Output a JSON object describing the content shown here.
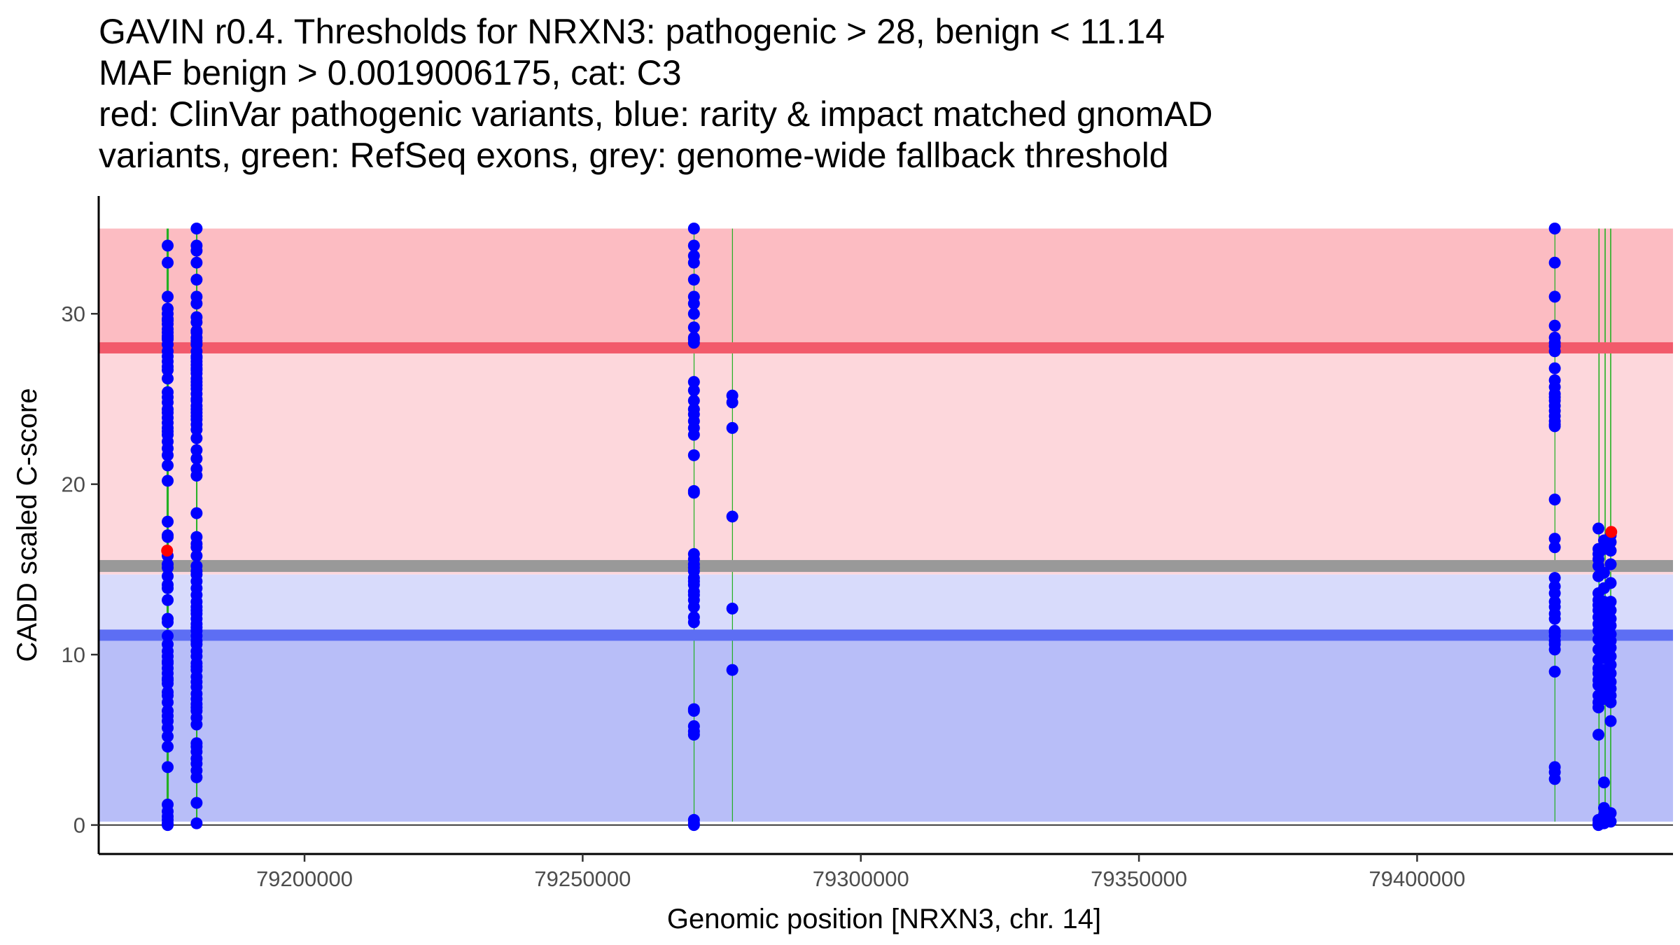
{
  "chart_data": {
    "type": "scatter",
    "title_lines": [
      "GAVIN r0.4. Thresholds for NRXN3: pathogenic > 28, benign < 11.14",
      "MAF benign > 0.0019006175, cat: C3",
      "red: ClinVar pathogenic variants, blue: rarity & impact matched gnomAD",
      "variants, green: RefSeq exons, grey: genome-wide fallback threshold"
    ],
    "xlabel": "Genomic position [NRXN3, chr. 14]",
    "ylabel": "CADD scaled C-score",
    "xlim": [
      79163000,
      79446000
    ],
    "ylim": [
      -1.7,
      36.5
    ],
    "x_ticks": [
      79200000,
      79250000,
      79300000,
      79350000,
      79400000
    ],
    "x_tick_labels": [
      "79200000",
      "79250000",
      "79300000",
      "79350000",
      "79400000"
    ],
    "y_ticks": [
      0,
      10,
      20,
      30
    ],
    "y_tick_labels": [
      "0",
      "10",
      "20",
      "30"
    ],
    "grid": false,
    "colors": {
      "pathogenic_region": "#fcbcc2",
      "vus_region": "#fdd7dc",
      "light_benign_region": "#d8dbfb",
      "benign_region": "#b8bef8",
      "pathogenic_line": "#f25a6b",
      "fallback_line": "#999999",
      "benign_line": "#5d6ef3",
      "exon": "#22b022",
      "gnomad_point": "#0000ff",
      "clinvar_point": "#ff0000"
    },
    "thresholds": {
      "pathogenic": 28,
      "benign": 11.14,
      "fallback": 15.2,
      "region_top": 35,
      "region_bottom": 0.2,
      "light_benign_top": 14.7
    },
    "exons": [
      {
        "start": 79175200,
        "end": 79175600
      },
      {
        "start": 79180500,
        "end": 79180750
      },
      {
        "start": 79269950,
        "end": 79270100
      },
      {
        "start": 79276850,
        "end": 79276950
      },
      {
        "start": 79424700,
        "end": 79424850
      },
      {
        "start": 79432600,
        "end": 79432800
      },
      {
        "start": 79433700,
        "end": 79433900
      },
      {
        "start": 79434700,
        "end": 79434900
      }
    ],
    "series": [
      {
        "name": "gnomAD",
        "x": [
          79175400,
          79175400,
          79175400,
          79175400,
          79175400,
          79175400,
          79175400,
          79175400,
          79175400,
          79175400,
          79175400,
          79175400,
          79175400,
          79175400,
          79175400,
          79175400,
          79175400,
          79175400,
          79175400,
          79175400,
          79175400,
          79175400,
          79175400,
          79175400,
          79175400,
          79175400,
          79175400,
          79175400,
          79175400,
          79175400,
          79175400,
          79175400,
          79175400,
          79175400,
          79175400,
          79175400,
          79175400,
          79175400,
          79175400,
          79175400,
          79175400,
          79175400,
          79175400,
          79175400,
          79175400,
          79175400,
          79175400,
          79175400,
          79175400,
          79175400,
          79175400,
          79175400,
          79175400,
          79175400,
          79175400,
          79175400,
          79175400,
          79175400,
          79175400,
          79175400,
          79175400,
          79175400,
          79175400,
          79175400,
          79175400,
          79175400,
          79175400,
          79175400,
          79175400,
          79175400,
          79175400,
          79175400,
          79175400,
          79175400,
          79180600,
          79180600,
          79180600,
          79180600,
          79180600,
          79180600,
          79180600,
          79180600,
          79180600,
          79180600,
          79180600,
          79180600,
          79180600,
          79180600,
          79180600,
          79180600,
          79180600,
          79180600,
          79180600,
          79180600,
          79180600,
          79180600,
          79180600,
          79180600,
          79180600,
          79180600,
          79180600,
          79180600,
          79180600,
          79180600,
          79180600,
          79180600,
          79180600,
          79180600,
          79180600,
          79180600,
          79180600,
          79180600,
          79180600,
          79180600,
          79180600,
          79180600,
          79180600,
          79180600,
          79180600,
          79180600,
          79180600,
          79180600,
          79180600,
          79180600,
          79180600,
          79180600,
          79180600,
          79180600,
          79180600,
          79180600,
          79180600,
          79180600,
          79180600,
          79180600,
          79180600,
          79180600,
          79180600,
          79180600,
          79180600,
          79180600,
          79180600,
          79180600,
          79180600,
          79180600,
          79180600,
          79180600,
          79180600,
          79180600,
          79180600,
          79180600,
          79180600,
          79180600,
          79180600,
          79180600,
          79180600,
          79180600,
          79180600,
          79180600,
          79180600,
          79180600,
          79180600,
          79270000,
          79270000,
          79270000,
          79270000,
          79270000,
          79270000,
          79270000,
          79270000,
          79270000,
          79270000,
          79270000,
          79270000,
          79270000,
          79270000,
          79270000,
          79270000,
          79270000,
          79270000,
          79270000,
          79270000,
          79270000,
          79270000,
          79270000,
          79270000,
          79270000,
          79270000,
          79270000,
          79270000,
          79270000,
          79270000,
          79270000,
          79270000,
          79270000,
          79270000,
          79270000,
          79270000,
          79270000,
          79270000,
          79270000,
          79270000,
          79270000,
          79270000,
          79270000,
          79270000,
          79270000,
          79276900,
          79276900,
          79276900,
          79276900,
          79276900,
          79276900,
          79424750,
          79424750,
          79424750,
          79424750,
          79424750,
          79424750,
          79424750,
          79424750,
          79424750,
          79424750,
          79424750,
          79424750,
          79424750,
          79424750,
          79424750,
          79424750,
          79424750,
          79424750,
          79424750,
          79424750,
          79424750,
          79424750,
          79424750,
          79424750,
          79424750,
          79424750,
          79424750,
          79424750,
          79424750,
          79424750,
          79424750,
          79424750,
          79424750,
          79424750,
          79424750,
          79424750,
          79424750,
          79424750,
          79424750,
          79424750,
          79432600,
          79432600,
          79432600,
          79432600,
          79432600,
          79432600,
          79432600,
          79432600,
          79432600,
          79432600,
          79432600,
          79432600,
          79432600,
          79432600,
          79432600,
          79432600,
          79432600,
          79432600,
          79432600,
          79432600,
          79432600,
          79432600,
          79432600,
          79432600,
          79432600,
          79432600,
          79432600,
          79433600,
          79433600,
          79433600,
          79433600,
          79433600,
          79433600,
          79433600,
          79433600,
          79433600,
          79433600,
          79433600,
          79433600,
          79433600,
          79433600,
          79433600,
          79433600,
          79433600,
          79433600,
          79433600,
          79433600,
          79433600,
          79433600,
          79433600,
          79433600,
          79434800,
          79434800,
          79434800,
          79434800,
          79434800,
          79434800,
          79434800,
          79434800,
          79434800,
          79434800,
          79434800,
          79434800,
          79434800,
          79434800,
          79434800,
          79434800,
          79434800,
          79434800,
          79434800,
          79434800,
          79434800,
          79434800
        ],
        "y": [
          34,
          33,
          31,
          30,
          29.7,
          29.4,
          29.1,
          28.9,
          28.7,
          28.5,
          28.2,
          27.8,
          27.2,
          26.7,
          26.2,
          25.4,
          25.1,
          24.8,
          24.4,
          23.9,
          23.6,
          23.3,
          22.9,
          22.5,
          22.1,
          21.7,
          21.1,
          20.2,
          17,
          16.9,
          15.8,
          15.3,
          14.6,
          13.9,
          13.2,
          12.1,
          11.1,
          10.6,
          10.2,
          9.9,
          9.6,
          9.2,
          8.9,
          8.5,
          8.3,
          7.8,
          7.2,
          6.7,
          6.1,
          5.7,
          5.2,
          4.6,
          3.4,
          1.2,
          0.8,
          0.5,
          0.3,
          0.1,
          0,
          30.3,
          29.6,
          28.6,
          27.5,
          26.9,
          24.2,
          23.1,
          17.8,
          15.1,
          14.1,
          11.9,
          9.5,
          8.6,
          7.6,
          6.4,
          35,
          34,
          33,
          32,
          31,
          29.5,
          29,
          28.6,
          28.2,
          27.8,
          27.5,
          27.2,
          26.8,
          26.5,
          26.2,
          25.8,
          25.3,
          24.9,
          24.6,
          24.2,
          23.8,
          23.5,
          23.2,
          22,
          21.5,
          20.9,
          20.5,
          18.3,
          16.9,
          16.3,
          15.8,
          15.2,
          14.7,
          14.3,
          13.9,
          13.5,
          13.1,
          12.8,
          12.4,
          12.1,
          11.8,
          11.4,
          11.1,
          10.6,
          10.2,
          9.9,
          9.5,
          9.1,
          8.7,
          8.4,
          7.7,
          7.1,
          6.7,
          6.3,
          4.8,
          4.3,
          3.6,
          3.2,
          2.8,
          1.3,
          0.1,
          29.8,
          28.9,
          28.4,
          27,
          26,
          25,
          24,
          22.7,
          16.5,
          14.9,
          12.6,
          11.6,
          10.8,
          9.3,
          8.1,
          7.4,
          6.9,
          5.9,
          4.6,
          3.9,
          33.7,
          30.6,
          27.4,
          26.7,
          25.6,
          24.4,
          35,
          34,
          33,
          32,
          31,
          30,
          29.2,
          28.6,
          28.3,
          28.5,
          26,
          25.5,
          24.9,
          24.1,
          23.7,
          23.3,
          22.9,
          21.7,
          19.6,
          19.5,
          15.9,
          15.6,
          15.3,
          14.9,
          14.5,
          14.3,
          14.1,
          13.5,
          13.2,
          12.8,
          12.2,
          11.9,
          6.8,
          6.7,
          5.8,
          5.5,
          5.3,
          0.3,
          0.1,
          0,
          33.4,
          30.6,
          24.4,
          15.1,
          13.7,
          25.2,
          24.8,
          23.3,
          18.1,
          12.7,
          9.1,
          35,
          33,
          31,
          29.3,
          28.3,
          28.1,
          27.8,
          26.8,
          26.1,
          25.7,
          25.3,
          24.9,
          24.6,
          24.3,
          24,
          23.7,
          23.5,
          19.1,
          16.8,
          16.3,
          14.5,
          13.6,
          13.1,
          12.8,
          12.4,
          11.4,
          11.1,
          10.8,
          10.6,
          9,
          3.4,
          2.7,
          28.6,
          25.1,
          23.4,
          14,
          12.1,
          11.3,
          10.3,
          3.1,
          17.4,
          16.2,
          15.9,
          15.6,
          15.2,
          14.6,
          13.6,
          13.2,
          12.9,
          12.6,
          12.2,
          11.8,
          11.4,
          10.9,
          10.3,
          9.7,
          9.2,
          8.9,
          8.5,
          8.2,
          7.6,
          7.2,
          6.9,
          5.3,
          0.3,
          0.1,
          0,
          16.7,
          16.2,
          14.8,
          13.9,
          13.1,
          12.6,
          12.2,
          11.6,
          11,
          10.6,
          10.2,
          9.8,
          9.1,
          8.6,
          8.2,
          7.9,
          7.7,
          7.4,
          2.5,
          1,
          0.6,
          0.4,
          0.3,
          0.1,
          17,
          16.6,
          16.1,
          15.3,
          14.2,
          13.1,
          12.6,
          12.1,
          11.7,
          11.2,
          10.8,
          10.4,
          9.9,
          9.4,
          8.9,
          8.4,
          8,
          7.6,
          7.2,
          6.1,
          0.7,
          0.2
        ]
      },
      {
        "name": "ClinVar",
        "x": [
          79175300,
          79434900
        ],
        "y": [
          16.1,
          17.2
        ]
      }
    ]
  }
}
